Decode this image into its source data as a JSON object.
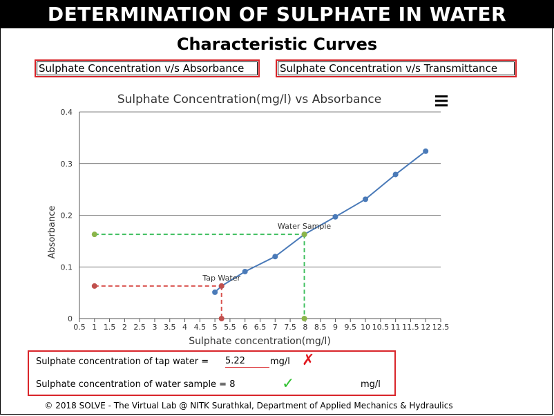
{
  "header": {
    "title": "DETERMINATION OF SULPHATE IN WATER"
  },
  "section": {
    "title": "Characteristic Curves"
  },
  "tabs": [
    {
      "label": "Sulphate Concentration v/s Absorbance"
    },
    {
      "label": "Sulphate Concentration v/s Transmittance"
    }
  ],
  "chart_data": {
    "type": "line",
    "title": "Sulphate Concentration(mg/l) vs Absorbance",
    "xlabel": "Sulphate concentration(mg/l)",
    "ylabel": "Absorbance",
    "xlim": [
      0.5,
      12.5
    ],
    "ylim": [
      0,
      0.4
    ],
    "x_ticks": [
      "0.5",
      "1",
      "1.5",
      "2",
      "2.5",
      "3",
      "3.5",
      "4",
      "4.5",
      "5",
      "5.5",
      "6",
      "6.5",
      "7",
      "7.5",
      "8",
      "8.5",
      "9",
      "9.5",
      "10",
      "10.5",
      "11",
      "11.5",
      "12",
      "12.5"
    ],
    "y_ticks": [
      "0",
      "0.1",
      "0.2",
      "0.3",
      "0.4"
    ],
    "grid": "horizontal",
    "series": [
      {
        "x": [
          5,
          5.22,
          6,
          7,
          7.97,
          9,
          10,
          11,
          12
        ],
        "y": [
          0.051,
          0.063,
          0.091,
          0.12,
          0.163,
          0.197,
          0.231,
          0.279,
          0.324
        ],
        "color": "#4a7ab8"
      }
    ],
    "annotations": [
      {
        "label": "Tap Water",
        "x": 5.22,
        "y": 0.063,
        "color": "#c0504d"
      },
      {
        "label": "Water Sample",
        "x": 7.97,
        "y": 0.163,
        "color": "#8bb54a"
      }
    ],
    "reference_lines": [
      {
        "color": "#d9534f",
        "x": 5.22,
        "y": 0.063,
        "x_start": 1
      },
      {
        "color": "#3fbf5f",
        "x": 7.97,
        "y": 0.163,
        "x_start": 1
      }
    ]
  },
  "results": {
    "tap_label": "Sulphate concentration of tap water =",
    "tap_value": "5.22",
    "tap_unit": "mg/l",
    "tap_status": "✗",
    "sample_label": "Sulphate concentration of water sample = 8",
    "sample_status": "✓",
    "sample_unit": "mg/l"
  },
  "footer": {
    "text": "© 2018 SOLVE - The Virtual Lab @ NITK Surathkal, Department of Applied Mechanics & Hydraulics"
  }
}
